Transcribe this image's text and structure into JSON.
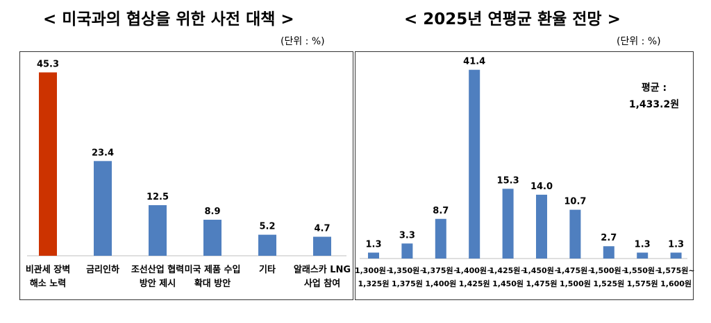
{
  "chart_data": [
    {
      "type": "bar",
      "title": "< 미국과의 협상을 위한 사전 대책 >",
      "unit_label": "(단위 : %)",
      "categories": [
        [
          "비관세 장벽",
          "해소 노력"
        ],
        [
          "금리인하"
        ],
        [
          "조선산업 협력",
          "방안 제시"
        ],
        [
          "미국 제품 수입",
          "확대 방안"
        ],
        [
          "기타"
        ],
        [
          "알래스카 LNG",
          "사업 참여"
        ]
      ],
      "values": [
        45.3,
        23.4,
        12.5,
        8.9,
        5.2,
        4.7
      ],
      "value_labels": [
        "45.3",
        "23.4",
        "12.5",
        "8.9",
        "5.2",
        "4.7"
      ],
      "highlight_index": 0,
      "colors": {
        "highlight": "#cc3300",
        "bar": "#4f7fbf"
      },
      "ylim": [
        0,
        50
      ],
      "grid": false
    },
    {
      "type": "bar",
      "title": "< 2025년 연평균 환율 전망 >",
      "unit_label": "(단위 : %)",
      "annotation": [
        "평균 :",
        "1,433.2원"
      ],
      "categories": [
        [
          "1,300원~",
          "1,325원"
        ],
        [
          "1,350원~",
          "1,375원"
        ],
        [
          "1,375원~",
          "1,400원"
        ],
        [
          "1,400원~",
          "1,425원"
        ],
        [
          "1,425원~",
          "1,450원"
        ],
        [
          "1,450원~",
          "1,475원"
        ],
        [
          "1,475원~",
          "1,500원"
        ],
        [
          "1,500원~",
          "1,525원"
        ],
        [
          "1,550원~",
          "1,575원"
        ],
        [
          "1,575원~",
          "1,600원"
        ]
      ],
      "values": [
        1.3,
        3.3,
        8.7,
        41.4,
        15.3,
        14.0,
        10.7,
        2.7,
        1.3,
        1.3
      ],
      "value_labels": [
        "1.3",
        "3.3",
        "8.7",
        "41.4",
        "15.3",
        "14.0",
        "10.7",
        "2.7",
        "1.3",
        "1.3"
      ],
      "colors": {
        "bar": "#4f7fbf"
      },
      "ylim": [
        0,
        45
      ],
      "grid": false
    }
  ]
}
